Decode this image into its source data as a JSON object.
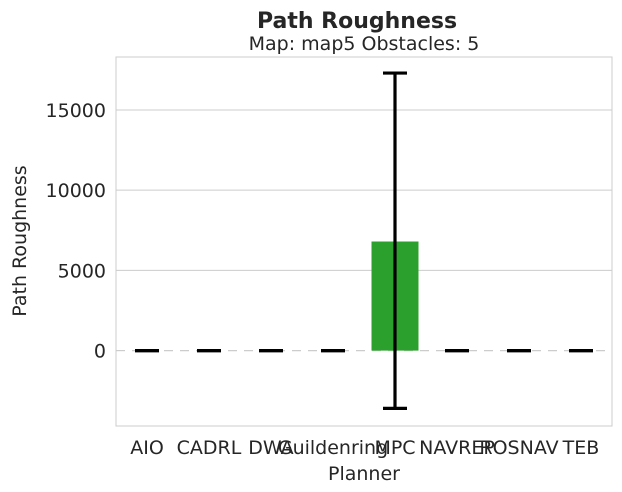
{
  "chart_data": {
    "type": "bar",
    "title": "Path Roughness",
    "subtitle": "Map: map5 Obstacles: 5",
    "xlabel": "Planner",
    "ylabel": "Path Roughness",
    "categories": [
      "AIO",
      "CADRL",
      "DWA",
      "Guildenring",
      "MPC",
      "NAVREP",
      "ROSNAV",
      "TEB"
    ],
    "values": [
      0,
      0,
      0,
      0,
      6800,
      0,
      0,
      0
    ],
    "error_low": [
      0,
      0,
      0,
      0,
      -3600,
      0,
      0,
      0
    ],
    "error_high": [
      0,
      0,
      0,
      0,
      17300,
      0,
      0,
      0
    ],
    "bar_color": "#2ca02c",
    "errorbar_color": "#000000",
    "ylim": [
      -4700,
      18300
    ],
    "yticks": [
      0,
      5000,
      10000,
      15000
    ],
    "grid": true,
    "zero_line": "dashed"
  }
}
